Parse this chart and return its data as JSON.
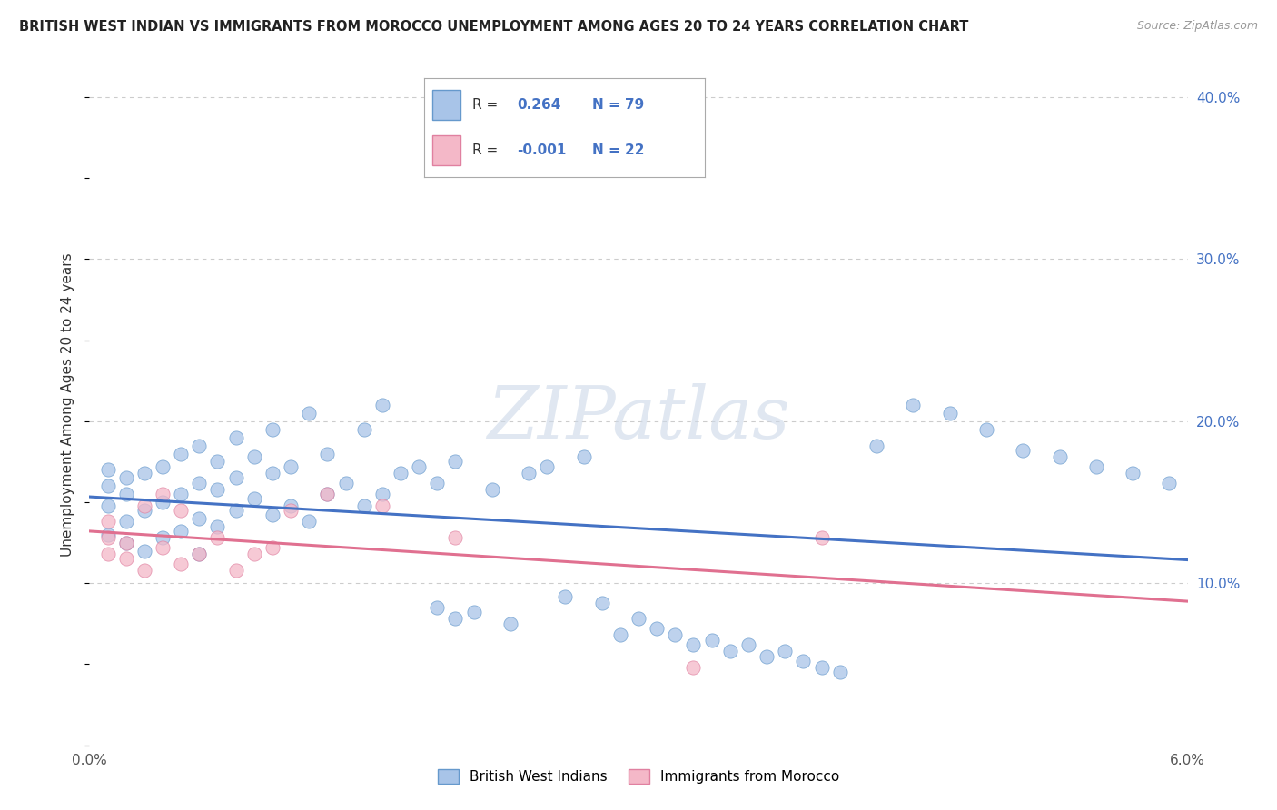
{
  "title": "BRITISH WEST INDIAN VS IMMIGRANTS FROM MOROCCO UNEMPLOYMENT AMONG AGES 20 TO 24 YEARS CORRELATION CHART",
  "source": "Source: ZipAtlas.com",
  "ylabel": "Unemployment Among Ages 20 to 24 years",
  "xlim": [
    0.0,
    0.06
  ],
  "ylim": [
    0.0,
    0.42
  ],
  "r_bwi": 0.264,
  "n_bwi": 79,
  "r_morocco": -0.001,
  "n_morocco": 22,
  "color_bwi_fill": "#a8c4e8",
  "color_bwi_edge": "#6699cc",
  "color_morocco_fill": "#f4b8c8",
  "color_morocco_edge": "#e080a0",
  "color_bwi_line": "#4472c4",
  "color_morocco_line": "#e07090",
  "color_grid": "#cccccc",
  "color_right_tick": "#4472c4",
  "watermark": "ZIPatlas",
  "bwi_x": [
    0.001,
    0.001,
    0.001,
    0.001,
    0.002,
    0.002,
    0.002,
    0.002,
    0.003,
    0.003,
    0.003,
    0.004,
    0.004,
    0.004,
    0.005,
    0.005,
    0.005,
    0.006,
    0.006,
    0.006,
    0.006,
    0.007,
    0.007,
    0.007,
    0.008,
    0.008,
    0.008,
    0.009,
    0.009,
    0.01,
    0.01,
    0.01,
    0.011,
    0.011,
    0.012,
    0.012,
    0.013,
    0.013,
    0.014,
    0.015,
    0.015,
    0.016,
    0.016,
    0.017,
    0.018,
    0.019,
    0.019,
    0.02,
    0.02,
    0.021,
    0.022,
    0.023,
    0.024,
    0.025,
    0.026,
    0.027,
    0.028,
    0.029,
    0.03,
    0.031,
    0.032,
    0.033,
    0.034,
    0.035,
    0.036,
    0.037,
    0.038,
    0.039,
    0.04,
    0.041,
    0.043,
    0.045,
    0.047,
    0.049,
    0.051,
    0.053,
    0.055,
    0.057,
    0.059
  ],
  "bwi_y": [
    0.13,
    0.148,
    0.16,
    0.17,
    0.125,
    0.138,
    0.155,
    0.165,
    0.12,
    0.145,
    0.168,
    0.128,
    0.15,
    0.172,
    0.132,
    0.155,
    0.18,
    0.118,
    0.14,
    0.162,
    0.185,
    0.135,
    0.158,
    0.175,
    0.145,
    0.165,
    0.19,
    0.152,
    0.178,
    0.142,
    0.168,
    0.195,
    0.148,
    0.172,
    0.138,
    0.205,
    0.155,
    0.18,
    0.162,
    0.148,
    0.195,
    0.155,
    0.21,
    0.168,
    0.172,
    0.085,
    0.162,
    0.078,
    0.175,
    0.082,
    0.158,
    0.075,
    0.168,
    0.172,
    0.092,
    0.178,
    0.088,
    0.068,
    0.078,
    0.072,
    0.068,
    0.062,
    0.065,
    0.058,
    0.062,
    0.055,
    0.058,
    0.052,
    0.048,
    0.045,
    0.185,
    0.21,
    0.205,
    0.195,
    0.182,
    0.178,
    0.172,
    0.168,
    0.162
  ],
  "morocco_x": [
    0.001,
    0.001,
    0.001,
    0.002,
    0.002,
    0.003,
    0.003,
    0.004,
    0.004,
    0.005,
    0.005,
    0.006,
    0.007,
    0.008,
    0.009,
    0.01,
    0.011,
    0.013,
    0.016,
    0.02,
    0.033,
    0.04
  ],
  "morocco_y": [
    0.118,
    0.128,
    0.138,
    0.115,
    0.125,
    0.108,
    0.148,
    0.122,
    0.155,
    0.112,
    0.145,
    0.118,
    0.128,
    0.108,
    0.118,
    0.122,
    0.145,
    0.155,
    0.148,
    0.128,
    0.048,
    0.128
  ]
}
